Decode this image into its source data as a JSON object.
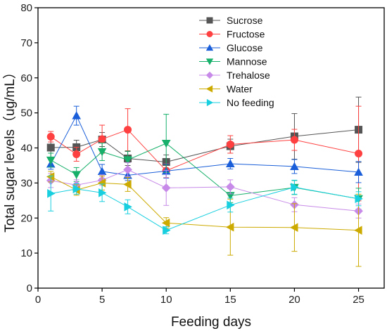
{
  "chart_data": {
    "type": "line",
    "xlabel": "Feeding days",
    "ylabel": "Total sugar levels（ug/mL）",
    "xlim": [
      0,
      27
    ],
    "ylim": [
      0,
      80
    ],
    "x_ticks": [
      "0",
      "5",
      "10",
      "15",
      "20",
      "25"
    ],
    "y_ticks": [
      "0",
      "10",
      "20",
      "30",
      "40",
      "50",
      "60",
      "70",
      "80"
    ],
    "grid": false,
    "legend_position": "top-right",
    "x": [
      1,
      3,
      5,
      7,
      10,
      15,
      20,
      25
    ],
    "series": [
      {
        "name": "Sucrose",
        "color": "#555555",
        "marker": "square",
        "values": [
          40.1,
          40.2,
          42.4,
          37.0,
          36.0,
          40.5,
          43.3,
          45.2
        ],
        "errors": [
          3,
          2,
          2,
          2,
          2,
          2,
          6.5,
          9.3
        ]
      },
      {
        "name": "Fructose",
        "color": "#ff4040",
        "marker": "circle",
        "values": [
          43.2,
          38.2,
          42.5,
          45.2,
          33.5,
          41.0,
          42.3,
          38.4
        ],
        "errors": [
          1.5,
          2,
          4,
          6,
          2,
          2.5,
          3,
          13.5
        ]
      },
      {
        "name": "Glucose",
        "color": "#1a5fd9",
        "marker": "triangle-up",
        "values": [
          35.4,
          49.2,
          33.3,
          32.2,
          33.4,
          35.5,
          34.7,
          33.1
        ],
        "errors": [
          1.5,
          2.7,
          2,
          1.5,
          2,
          1.5,
          2,
          3
        ]
      },
      {
        "name": "Mannose",
        "color": "#16b06a",
        "marker": "triangle-down",
        "values": [
          36.5,
          32.4,
          38.9,
          36.6,
          41.3,
          26.4,
          28.7,
          25.5
        ],
        "errors": [
          2,
          2,
          2.5,
          2.5,
          8.3,
          2,
          2,
          3
        ]
      },
      {
        "name": "Trehalose",
        "color": "#c78ae8",
        "marker": "diamond",
        "values": [
          30.7,
          29.4,
          30.8,
          33.8,
          28.6,
          28.9,
          23.8,
          22.0
        ],
        "errors": [
          2,
          1.5,
          1.5,
          2,
          5,
          2,
          2,
          2
        ]
      },
      {
        "name": "Water",
        "color": "#ccaa00",
        "marker": "triangle-left",
        "values": [
          31.8,
          28.0,
          30.0,
          29.6,
          18.6,
          17.4,
          17.3,
          16.5
        ],
        "errors": [
          1.5,
          1.5,
          2,
          2,
          1.5,
          8,
          6.8,
          10.3
        ]
      },
      {
        "name": "No feeding",
        "color": "#17cfdf",
        "marker": "triangle-right",
        "values": [
          27.0,
          28.3,
          27.2,
          23.2,
          16.5,
          23.7,
          28.8,
          25.5
        ],
        "errors": [
          5,
          1.5,
          2.5,
          2,
          1,
          2,
          2,
          2
        ]
      }
    ]
  }
}
